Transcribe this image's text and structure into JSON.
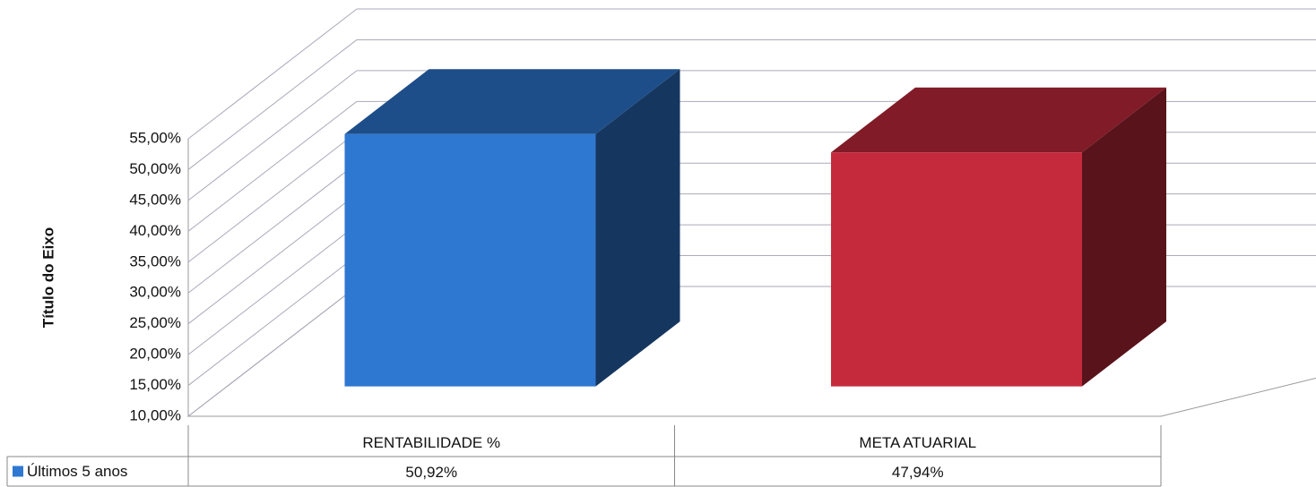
{
  "chart_data": {
    "type": "bar3d",
    "y_axis_title": "Título do Eixo",
    "categories": [
      "RENTABILIDADE %",
      "META ATUARIAL"
    ],
    "series": [
      {
        "name": "Últimos 5 anos",
        "color": "#2e78d2",
        "point_colors": [
          "#2e78d2",
          "#c52a3c"
        ],
        "values": [
          50.92,
          47.94
        ],
        "value_labels": [
          "50,92%",
          "47,94%"
        ]
      }
    ],
    "ylim": [
      10,
      55
    ],
    "yticks": [
      {
        "value": 10,
        "label": "10,00%"
      },
      {
        "value": 15,
        "label": "15,00%"
      },
      {
        "value": 20,
        "label": "20,00%"
      },
      {
        "value": 25,
        "label": "25,00%"
      },
      {
        "value": 30,
        "label": "30,00%"
      },
      {
        "value": 35,
        "label": "35,00%"
      },
      {
        "value": 40,
        "label": "40,00%"
      },
      {
        "value": 45,
        "label": "45,00%"
      },
      {
        "value": 50,
        "label": "50,00%"
      },
      {
        "value": 55,
        "label": "55,00%"
      }
    ],
    "grid": true,
    "data_table": true
  }
}
